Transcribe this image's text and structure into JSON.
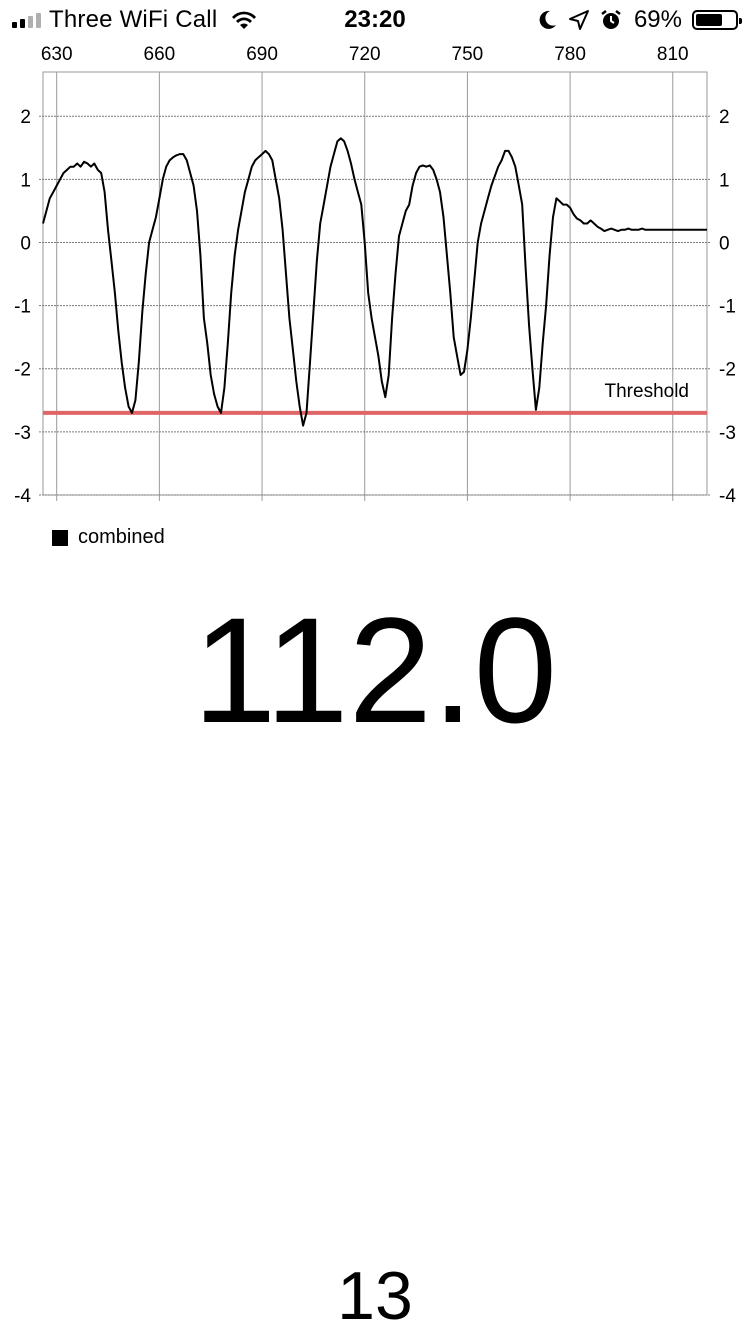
{
  "status_bar": {
    "carrier": "Three WiFi Call",
    "time": "23:20",
    "battery_percent": "69%",
    "battery_level": 0.69,
    "signal_bars_active": 2,
    "signal_bars_total": 4,
    "icons": [
      "wifi-icon",
      "moon-icon",
      "location-arrow-icon",
      "alarm-clock-icon",
      "battery-icon"
    ]
  },
  "chart_data": {
    "type": "line",
    "title": "",
    "xlabel": "",
    "ylabel": "",
    "xlim": [
      626,
      820
    ],
    "ylim": [
      -4,
      2.7
    ],
    "x_ticks": [
      630,
      660,
      690,
      720,
      750,
      780,
      810
    ],
    "y_ticks": [
      2,
      1,
      0,
      -1,
      -2,
      -3,
      -4
    ],
    "grid": true,
    "legend_position": "bottom-left",
    "threshold": {
      "label": "Threshold",
      "value": -2.7,
      "color": "#e06666"
    },
    "series": [
      {
        "name": "combined",
        "color": "#000000",
        "points": [
          [
            626,
            0.3
          ],
          [
            627,
            0.5
          ],
          [
            628,
            0.7
          ],
          [
            629,
            0.8
          ],
          [
            630,
            0.9
          ],
          [
            631,
            1.0
          ],
          [
            632,
            1.1
          ],
          [
            633,
            1.15
          ],
          [
            634,
            1.2
          ],
          [
            635,
            1.2
          ],
          [
            636,
            1.25
          ],
          [
            637,
            1.2
          ],
          [
            638,
            1.28
          ],
          [
            639,
            1.25
          ],
          [
            640,
            1.2
          ],
          [
            641,
            1.25
          ],
          [
            642,
            1.15
          ],
          [
            643,
            1.1
          ],
          [
            644,
            0.8
          ],
          [
            645,
            0.2
          ],
          [
            646,
            -0.3
          ],
          [
            647,
            -0.8
          ],
          [
            648,
            -1.4
          ],
          [
            649,
            -1.9
          ],
          [
            650,
            -2.3
          ],
          [
            651,
            -2.6
          ],
          [
            652,
            -2.7
          ],
          [
            653,
            -2.5
          ],
          [
            654,
            -1.9
          ],
          [
            655,
            -1.1
          ],
          [
            656,
            -0.5
          ],
          [
            657,
            0.0
          ],
          [
            658,
            0.2
          ],
          [
            659,
            0.4
          ],
          [
            660,
            0.7
          ],
          [
            661,
            1.0
          ],
          [
            662,
            1.2
          ],
          [
            663,
            1.3
          ],
          [
            664,
            1.35
          ],
          [
            665,
            1.38
          ],
          [
            666,
            1.4
          ],
          [
            667,
            1.4
          ],
          [
            668,
            1.3
          ],
          [
            669,
            1.1
          ],
          [
            670,
            0.9
          ],
          [
            671,
            0.5
          ],
          [
            672,
            -0.2
          ],
          [
            673,
            -1.2
          ],
          [
            674,
            -1.6
          ],
          [
            675,
            -2.1
          ],
          [
            676,
            -2.4
          ],
          [
            677,
            -2.6
          ],
          [
            678,
            -2.7
          ],
          [
            679,
            -2.3
          ],
          [
            680,
            -1.6
          ],
          [
            681,
            -0.8
          ],
          [
            682,
            -0.2
          ],
          [
            683,
            0.2
          ],
          [
            684,
            0.5
          ],
          [
            685,
            0.8
          ],
          [
            686,
            1.0
          ],
          [
            687,
            1.2
          ],
          [
            688,
            1.3
          ],
          [
            689,
            1.35
          ],
          [
            690,
            1.4
          ],
          [
            691,
            1.45
          ],
          [
            692,
            1.4
          ],
          [
            693,
            1.3
          ],
          [
            694,
            1.0
          ],
          [
            695,
            0.7
          ],
          [
            696,
            0.2
          ],
          [
            697,
            -0.5
          ],
          [
            698,
            -1.2
          ],
          [
            699,
            -1.7
          ],
          [
            700,
            -2.2
          ],
          [
            701,
            -2.6
          ],
          [
            702,
            -2.9
          ],
          [
            703,
            -2.7
          ],
          [
            704,
            -1.9
          ],
          [
            705,
            -1.1
          ],
          [
            706,
            -0.3
          ],
          [
            707,
            0.3
          ],
          [
            708,
            0.6
          ],
          [
            709,
            0.9
          ],
          [
            710,
            1.2
          ],
          [
            711,
            1.4
          ],
          [
            712,
            1.6
          ],
          [
            713,
            1.65
          ],
          [
            714,
            1.6
          ],
          [
            715,
            1.45
          ],
          [
            716,
            1.25
          ],
          [
            717,
            1.0
          ],
          [
            718,
            0.8
          ],
          [
            719,
            0.6
          ],
          [
            720,
            0.0
          ],
          [
            721,
            -0.8
          ],
          [
            722,
            -1.2
          ],
          [
            723,
            -1.5
          ],
          [
            724,
            -1.8
          ],
          [
            725,
            -2.2
          ],
          [
            726,
            -2.45
          ],
          [
            727,
            -2.1
          ],
          [
            728,
            -1.2
          ],
          [
            729,
            -0.5
          ],
          [
            730,
            0.1
          ],
          [
            731,
            0.3
          ],
          [
            732,
            0.5
          ],
          [
            733,
            0.6
          ],
          [
            734,
            0.9
          ],
          [
            735,
            1.1
          ],
          [
            736,
            1.2
          ],
          [
            737,
            1.22
          ],
          [
            738,
            1.2
          ],
          [
            739,
            1.22
          ],
          [
            740,
            1.15
          ],
          [
            741,
            1.0
          ],
          [
            742,
            0.8
          ],
          [
            743,
            0.4
          ],
          [
            744,
            -0.2
          ],
          [
            745,
            -0.8
          ],
          [
            746,
            -1.5
          ],
          [
            747,
            -1.8
          ],
          [
            748,
            -2.1
          ],
          [
            749,
            -2.05
          ],
          [
            750,
            -1.7
          ],
          [
            751,
            -1.2
          ],
          [
            752,
            -0.6
          ],
          [
            753,
            0.0
          ],
          [
            754,
            0.3
          ],
          [
            755,
            0.5
          ],
          [
            756,
            0.7
          ],
          [
            757,
            0.9
          ],
          [
            758,
            1.05
          ],
          [
            759,
            1.2
          ],
          [
            760,
            1.3
          ],
          [
            761,
            1.45
          ],
          [
            762,
            1.45
          ],
          [
            763,
            1.35
          ],
          [
            764,
            1.2
          ],
          [
            765,
            0.9
          ],
          [
            766,
            0.6
          ],
          [
            767,
            -0.4
          ],
          [
            768,
            -1.3
          ],
          [
            769,
            -2.0
          ],
          [
            770,
            -2.65
          ],
          [
            771,
            -2.3
          ],
          [
            772,
            -1.6
          ],
          [
            773,
            -1.0
          ],
          [
            774,
            -0.2
          ],
          [
            775,
            0.4
          ],
          [
            776,
            0.7
          ],
          [
            777,
            0.65
          ],
          [
            778,
            0.6
          ],
          [
            779,
            0.6
          ],
          [
            780,
            0.55
          ],
          [
            781,
            0.45
          ],
          [
            782,
            0.38
          ],
          [
            783,
            0.35
          ],
          [
            784,
            0.3
          ],
          [
            785,
            0.3
          ],
          [
            786,
            0.35
          ],
          [
            787,
            0.3
          ],
          [
            788,
            0.25
          ],
          [
            789,
            0.22
          ],
          [
            790,
            0.18
          ],
          [
            791,
            0.2
          ],
          [
            792,
            0.22
          ],
          [
            793,
            0.2
          ],
          [
            794,
            0.18
          ],
          [
            795,
            0.2
          ],
          [
            796,
            0.2
          ],
          [
            797,
            0.22
          ],
          [
            798,
            0.2
          ],
          [
            799,
            0.2
          ],
          [
            800,
            0.2
          ],
          [
            801,
            0.22
          ],
          [
            802,
            0.2
          ],
          [
            803,
            0.2
          ],
          [
            804,
            0.2
          ],
          [
            805,
            0.2
          ],
          [
            806,
            0.2
          ],
          [
            807,
            0.2
          ],
          [
            808,
            0.2
          ],
          [
            809,
            0.2
          ],
          [
            810,
            0.2
          ],
          [
            811,
            0.2
          ],
          [
            812,
            0.2
          ],
          [
            813,
            0.2
          ],
          [
            814,
            0.2
          ],
          [
            815,
            0.2
          ],
          [
            816,
            0.2
          ],
          [
            817,
            0.2
          ],
          [
            818,
            0.2
          ],
          [
            819,
            0.2
          ],
          [
            820,
            0.2
          ]
        ]
      }
    ]
  },
  "readout": {
    "value": "112.0",
    "count": "13"
  }
}
